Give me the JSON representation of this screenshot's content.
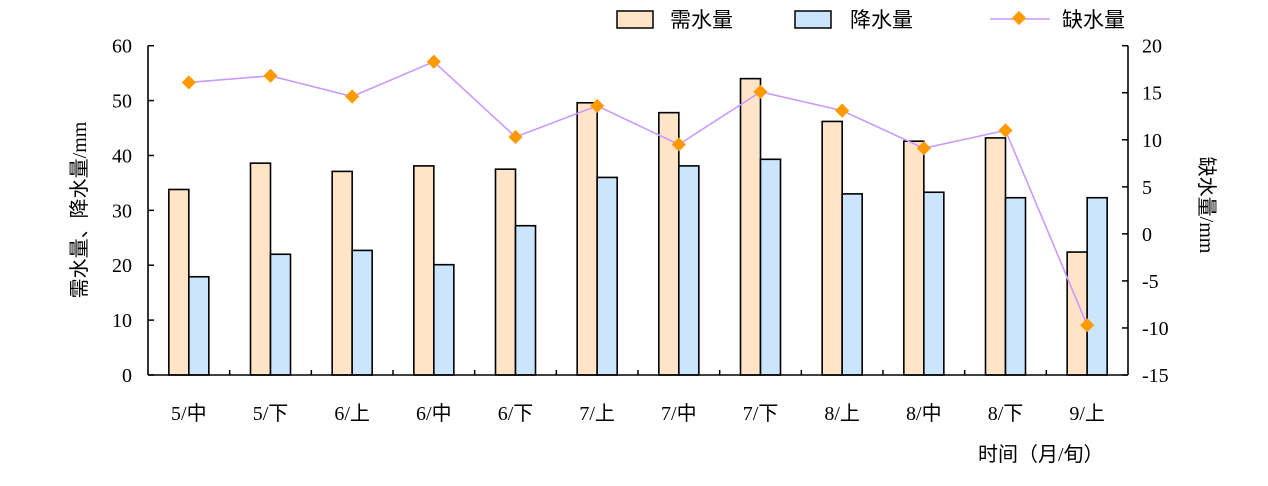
{
  "chart_data": {
    "type": "bar",
    "categories": [
      "5/中",
      "5/下",
      "6/上",
      "6/中",
      "6/下",
      "7/上",
      "7/中",
      "7/下",
      "8/上",
      "8/中",
      "8/下",
      "9/上"
    ],
    "series": [
      {
        "name": "需水量",
        "type": "bar",
        "axis": "left",
        "color": "#FFE4C8",
        "values": [
          33.8,
          38.6,
          37.1,
          38.1,
          37.5,
          49.6,
          47.8,
          54.0,
          46.2,
          42.6,
          43.2,
          22.4
        ]
      },
      {
        "name": "降水量",
        "type": "bar",
        "axis": "left",
        "color": "#CCE5FF",
        "values": [
          17.9,
          22.0,
          22.7,
          20.1,
          27.2,
          36.0,
          38.1,
          39.3,
          33.0,
          33.3,
          32.3,
          32.3
        ]
      },
      {
        "name": "缺水量",
        "type": "line",
        "axis": "right",
        "color": "#CC99FF",
        "marker_color": "#FF9900",
        "values": [
          16.1,
          16.8,
          14.6,
          18.3,
          10.3,
          13.6,
          9.5,
          15.1,
          13.1,
          9.1,
          11.0,
          -9.7
        ]
      }
    ],
    "xlabel": "时间（月/旬）",
    "ylabel": "需水量、降水量/mm",
    "ylabel_right": "缺水量/mm",
    "ylim": [
      0,
      60
    ],
    "yticks": [
      "0",
      "10",
      "20",
      "30",
      "40",
      "50",
      "60"
    ],
    "ylim_right": [
      -15,
      20
    ],
    "yticks_right": [
      "-15",
      "-10",
      "-5",
      "0",
      "5",
      "10",
      "15",
      "20"
    ],
    "legend_position": "top-right",
    "grid": false
  }
}
